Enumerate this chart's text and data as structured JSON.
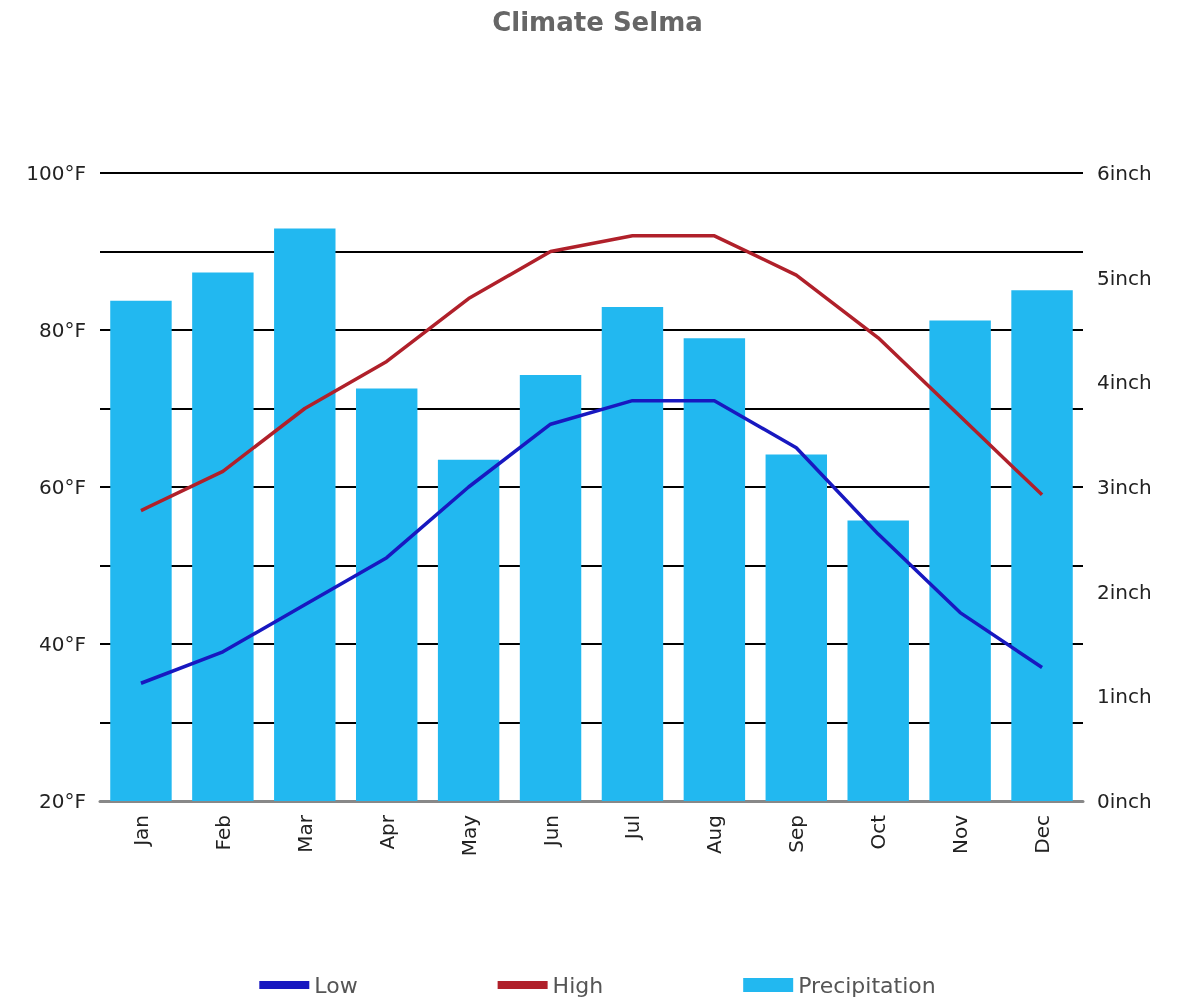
{
  "chart_data": {
    "type": "line",
    "title": "Climate Selma",
    "categories": [
      "Jan",
      "Feb",
      "Mar",
      "Apr",
      "May",
      "Jun",
      "Jul",
      "Aug",
      "Sep",
      "Oct",
      "Nov",
      "Dec"
    ],
    "series": [
      {
        "name": "Low",
        "color": "#1818c0",
        "values": [
          35,
          39,
          45,
          51,
          60,
          68,
          71,
          71,
          65,
          54,
          44,
          37
        ]
      },
      {
        "name": "High",
        "color": "#b0202a",
        "values": [
          57,
          62,
          70,
          76,
          84,
          90,
          92,
          92,
          87,
          79,
          69,
          59
        ]
      },
      {
        "name": "Precipitation",
        "type": "bar",
        "axis": "y2",
        "color": "#22b8f0",
        "values": [
          4.78,
          5.05,
          5.47,
          3.94,
          3.26,
          4.07,
          4.72,
          4.42,
          3.31,
          2.68,
          4.59,
          4.88
        ]
      }
    ],
    "ylim": [
      20,
      100
    ],
    "yticks": [
      {
        "value": 20,
        "label": "20°F"
      },
      {
        "value": 30,
        "label": null
      },
      {
        "value": 40,
        "label": "40°F"
      },
      {
        "value": 50,
        "label": null
      },
      {
        "value": 60,
        "label": "60°F"
      },
      {
        "value": 70,
        "label": null
      },
      {
        "value": 80,
        "label": "80°F"
      },
      {
        "value": 90,
        "label": null
      },
      {
        "value": 100,
        "label": "100°F"
      }
    ],
    "y2lim": [
      0,
      6
    ],
    "y2ticks": [
      {
        "value": 0,
        "label": "0inch"
      },
      {
        "value": 1,
        "label": "1inch"
      },
      {
        "value": 2,
        "label": "2inch"
      },
      {
        "value": 3,
        "label": "3inch"
      },
      {
        "value": 4,
        "label": "4inch"
      },
      {
        "value": 5,
        "label": "5inch"
      },
      {
        "value": 6,
        "label": "6inch"
      }
    ],
    "grid": "y",
    "legend": "bottom",
    "marker": "none",
    "line_style": "solid"
  }
}
